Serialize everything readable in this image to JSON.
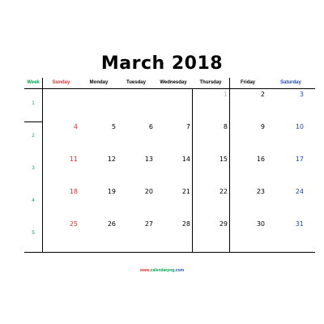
{
  "title": "March 2018",
  "headers": {
    "week": "Week",
    "days": [
      "Sunday",
      "Monday",
      "Tuesday",
      "Wednesday",
      "Thursday",
      "Friday",
      "Saturday"
    ]
  },
  "colors": {
    "week_green": "#00a651",
    "sunday_red": "#e53030",
    "saturday_blue": "#1e49b0",
    "muted_gray": "#bbbbbb"
  },
  "weeks": [
    {
      "number": "1",
      "days": [
        "",
        "",
        "",
        "",
        "1",
        "2",
        "3"
      ],
      "muted": [
        false,
        false,
        false,
        false,
        true,
        false,
        false
      ]
    },
    {
      "number": "2",
      "days": [
        "4",
        "5",
        "6",
        "7",
        "8",
        "9",
        "10"
      ],
      "muted": [
        false,
        false,
        false,
        false,
        false,
        false,
        false
      ]
    },
    {
      "number": "3",
      "days": [
        "11",
        "12",
        "13",
        "14",
        "15",
        "16",
        "17"
      ],
      "muted": [
        false,
        false,
        false,
        false,
        false,
        false,
        false
      ]
    },
    {
      "number": "4",
      "days": [
        "18",
        "19",
        "20",
        "21",
        "22",
        "23",
        "24"
      ],
      "muted": [
        false,
        false,
        false,
        false,
        false,
        false,
        false
      ]
    },
    {
      "number": "5",
      "days": [
        "25",
        "26",
        "27",
        "28",
        "29",
        "30",
        "31"
      ],
      "muted": [
        false,
        false,
        false,
        false,
        false,
        false,
        false
      ]
    }
  ],
  "footer": {
    "part1": "www.",
    "part2": "calendarpng",
    "part3": ".com"
  }
}
